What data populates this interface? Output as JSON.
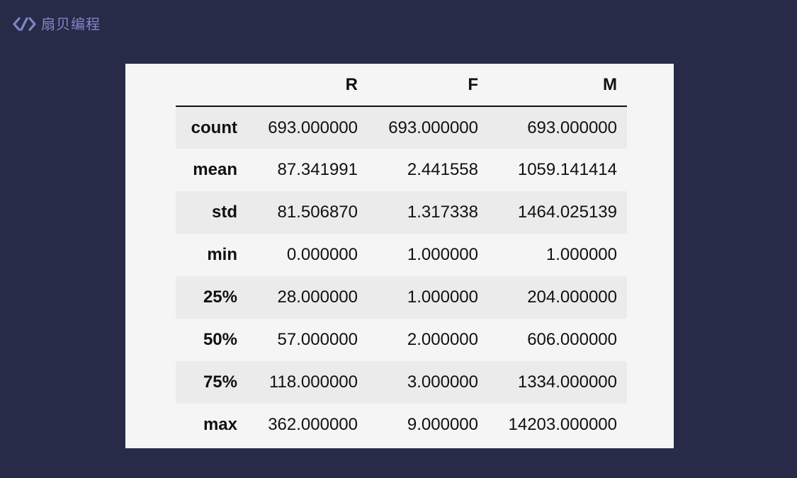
{
  "brand": {
    "name": "扇贝编程",
    "color": "#7f86cc"
  },
  "table": {
    "columns": [
      "",
      "R",
      "F",
      "M"
    ],
    "rows": [
      {
        "label": "count",
        "values": [
          "693.000000",
          "693.000000",
          "693.000000"
        ]
      },
      {
        "label": "mean",
        "values": [
          "87.341991",
          "2.441558",
          "1059.141414"
        ]
      },
      {
        "label": "std",
        "values": [
          "81.506870",
          "1.317338",
          "1464.025139"
        ]
      },
      {
        "label": "min",
        "values": [
          "0.000000",
          "1.000000",
          "1.000000"
        ]
      },
      {
        "label": "25%",
        "values": [
          "28.000000",
          "1.000000",
          "204.000000"
        ]
      },
      {
        "label": "50%",
        "values": [
          "57.000000",
          "2.000000",
          "606.000000"
        ]
      },
      {
        "label": "75%",
        "values": [
          "118.000000",
          "3.000000",
          "1334.000000"
        ]
      },
      {
        "label": "max",
        "values": [
          "362.000000",
          "9.000000",
          "14203.000000"
        ]
      }
    ]
  },
  "colors": {
    "background": "#282b47",
    "panel": "#f5f5f5",
    "stripe": "#ebebeb"
  }
}
